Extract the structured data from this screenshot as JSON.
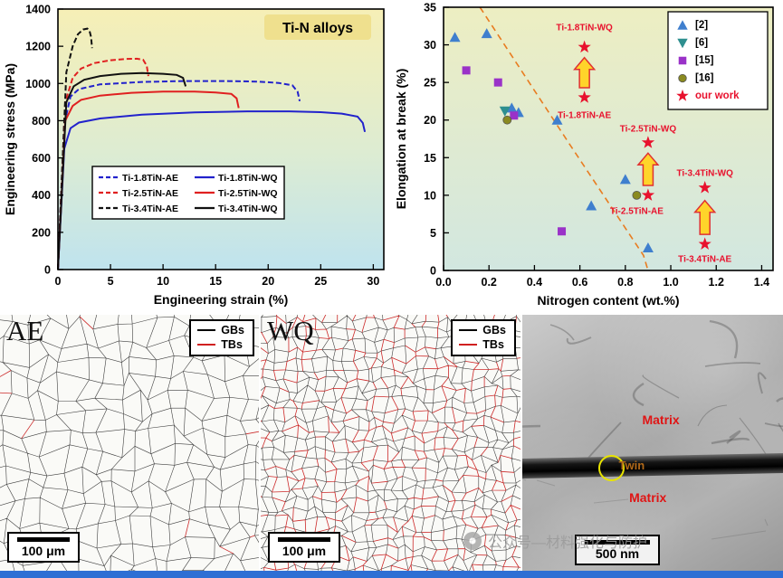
{
  "colors": {
    "bottom_bar": "#2e6fd4"
  },
  "chart_data": [
    {
      "type": "line",
      "title": "Ti-N alloys",
      "xlabel": "Engineering strain (%)",
      "ylabel": "Engineering stress (MPa)",
      "xlim": [
        0,
        31
      ],
      "ylim": [
        0,
        1400
      ],
      "xticks": [
        "0",
        "5",
        "10",
        "15",
        "20",
        "25",
        "30"
      ],
      "yticks": [
        "0",
        "200",
        "400",
        "600",
        "800",
        "1000",
        "1200",
        "1400"
      ],
      "grid": false,
      "legend_position": "center-left",
      "bg_top": "#f6efb6",
      "bg_mid": "#ddecd2",
      "bg_bottom": "#bfe3ee",
      "title_bg": "#efe08e",
      "series": [
        {
          "name": "Ti-1.8TiN-AE",
          "color": "#2222cc",
          "dash": true,
          "points": [
            [
              0,
              0
            ],
            [
              0.6,
              780
            ],
            [
              1.2,
              930
            ],
            [
              2,
              970
            ],
            [
              4,
              995
            ],
            [
              8,
              1008
            ],
            [
              12,
              1013
            ],
            [
              16,
              1013
            ],
            [
              19,
              1010
            ],
            [
              21,
              1003
            ],
            [
              22.3,
              990
            ],
            [
              22.8,
              955
            ],
            [
              23.0,
              905
            ]
          ]
        },
        {
          "name": "Ti-2.5TiN-AE",
          "color": "#e02020",
          "dash": true,
          "points": [
            [
              0,
              0
            ],
            [
              0.7,
              900
            ],
            [
              1.4,
              1030
            ],
            [
              2.2,
              1080
            ],
            [
              3.5,
              1110
            ],
            [
              5,
              1125
            ],
            [
              6.5,
              1132
            ],
            [
              7.5,
              1133
            ],
            [
              8.1,
              1128
            ],
            [
              8.45,
              1095
            ],
            [
              8.6,
              1040
            ]
          ]
        },
        {
          "name": "Ti-3.4TiN-AE",
          "color": "#111111",
          "dash": true,
          "points": [
            [
              0,
              0
            ],
            [
              0.8,
              1060
            ],
            [
              1.4,
              1200
            ],
            [
              1.9,
              1265
            ],
            [
              2.4,
              1290
            ],
            [
              2.8,
              1295
            ],
            [
              3.0,
              1285
            ],
            [
              3.15,
              1250
            ],
            [
              3.25,
              1190
            ]
          ]
        },
        {
          "name": "Ti-1.8TiN-WQ",
          "color": "#2222cc",
          "dash": false,
          "points": [
            [
              0,
              0
            ],
            [
              0.6,
              650
            ],
            [
              1.2,
              760
            ],
            [
              2,
              790
            ],
            [
              4,
              812
            ],
            [
              8,
              832
            ],
            [
              13,
              845
            ],
            [
              18,
              850
            ],
            [
              22,
              850
            ],
            [
              25,
              846
            ],
            [
              27,
              838
            ],
            [
              28.5,
              822
            ],
            [
              29.0,
              788
            ],
            [
              29.2,
              740
            ]
          ]
        },
        {
          "name": "Ti-2.5TiN-WQ",
          "color": "#e02020",
          "dash": false,
          "points": [
            [
              0,
              0
            ],
            [
              0.7,
              800
            ],
            [
              1.4,
              880
            ],
            [
              2.2,
              912
            ],
            [
              4,
              935
            ],
            [
              7,
              950
            ],
            [
              10,
              956
            ],
            [
              13,
              956
            ],
            [
              15,
              952
            ],
            [
              16.5,
              944
            ],
            [
              17.0,
              920
            ],
            [
              17.2,
              868
            ]
          ]
        },
        {
          "name": "Ti-3.4TiN-WQ",
          "color": "#111111",
          "dash": false,
          "points": [
            [
              0,
              0
            ],
            [
              0.8,
              900
            ],
            [
              1.5,
              985
            ],
            [
              2.5,
              1020
            ],
            [
              4,
              1040
            ],
            [
              6,
              1052
            ],
            [
              8,
              1056
            ],
            [
              10,
              1052
            ],
            [
              11.3,
              1046
            ],
            [
              11.9,
              1030
            ],
            [
              12.15,
              985
            ]
          ]
        }
      ]
    },
    {
      "type": "scatter",
      "xlabel": "Nitrogen content (wt.%)",
      "ylabel": "Elongation at break (%)",
      "xlim": [
        0,
        1.45
      ],
      "ylim": [
        0,
        35
      ],
      "xticks": [
        "0.0",
        "0.2",
        "0.4",
        "0.6",
        "0.8",
        "1.0",
        "1.2",
        "1.4"
      ],
      "yticks": [
        "0",
        "5",
        "10",
        "15",
        "20",
        "25",
        "30",
        "35"
      ],
      "grid": false,
      "legend_position": "top-right",
      "bg_top": "#edeec2",
      "bg_bottom": "#d2e7e0",
      "arrow_fill": "#ffd42a",
      "arrow_stroke": "#e03131",
      "trendline": {
        "color": "#e87c20",
        "dash": true,
        "points": [
          [
            0.16,
            35
          ],
          [
            0.55,
            17
          ],
          [
            0.88,
            2
          ],
          [
            0.9,
            0
          ]
        ]
      },
      "series": [
        {
          "name": "[2]",
          "marker": "triangle-up",
          "color": "#3f7fce",
          "points": [
            [
              0.05,
              31
            ],
            [
              0.19,
              31.5
            ],
            [
              0.3,
              21.6
            ],
            [
              0.33,
              21.0
            ],
            [
              0.5,
              20.0
            ],
            [
              0.65,
              8.6
            ],
            [
              0.8,
              12.1
            ],
            [
              0.9,
              3.0
            ]
          ]
        },
        {
          "name": "[6]",
          "marker": "triangle-down",
          "color": "#2e8f8f",
          "points": [
            [
              0.27,
              21.2
            ]
          ]
        },
        {
          "name": "[15]",
          "marker": "square",
          "color": "#9a32c8",
          "points": [
            [
              0.1,
              26.6
            ],
            [
              0.24,
              25.0
            ],
            [
              0.31,
              20.6
            ],
            [
              0.52,
              5.2
            ]
          ]
        },
        {
          "name": "[16]",
          "marker": "circle",
          "color": "#8a8a20",
          "points": [
            [
              0.28,
              20.0
            ],
            [
              0.85,
              10.0
            ]
          ]
        },
        {
          "name": "our work",
          "marker": "star",
          "color": "#e8112d",
          "label_color": "#e8112d",
          "points": [
            [
              0.62,
              29.7
            ],
            [
              0.62,
              23.0
            ],
            [
              0.9,
              17.0
            ],
            [
              0.9,
              10.0
            ],
            [
              1.15,
              11.0
            ],
            [
              1.15,
              3.5
            ]
          ]
        }
      ],
      "annotations": [
        {
          "text": "Ti-1.8TiN-WQ",
          "x": 0.62,
          "y": 32.3
        },
        {
          "text": "Ti-1.8TiN-AE",
          "x": 0.62,
          "y": 20.6
        },
        {
          "text": "Ti-2.5TiN-WQ",
          "x": 0.9,
          "y": 18.8
        },
        {
          "text": "Ti-2.5TiN-AE",
          "x": 0.85,
          "y": 7.9
        },
        {
          "text": "Ti-3.4TiN-WQ",
          "x": 1.15,
          "y": 12.9
        },
        {
          "text": "Ti-3.4TiN-AE",
          "x": 1.15,
          "y": 1.5
        }
      ],
      "arrows": [
        {
          "x": 0.62,
          "y_from": 24.3,
          "y_to": 28.3
        },
        {
          "x": 0.9,
          "y_from": 11.3,
          "y_to": 15.6
        },
        {
          "x": 1.15,
          "y_from": 4.8,
          "y_to": 9.3
        }
      ]
    }
  ],
  "micrographs": {
    "ae": {
      "label": "AE",
      "legend": [
        {
          "label": "GBs",
          "color": "#000000"
        },
        {
          "label": "TBs",
          "color": "#d02020"
        }
      ],
      "scalebar": "100 μm"
    },
    "wq": {
      "label": "WQ",
      "legend": [
        {
          "label": "GBs",
          "color": "#000000"
        },
        {
          "label": "TBs",
          "color": "#d02020"
        }
      ],
      "scalebar": "100 μm"
    },
    "tem": {
      "matrix_top": "Matrix",
      "twin": "Twin",
      "matrix_bottom": "Matrix",
      "scalebar": "500 nm",
      "matrix_color": "#e01515",
      "twin_color": "#b06818",
      "circle_color": "#e8e400"
    }
  },
  "watermark": {
    "text": "公众号—材料强化与防护"
  }
}
